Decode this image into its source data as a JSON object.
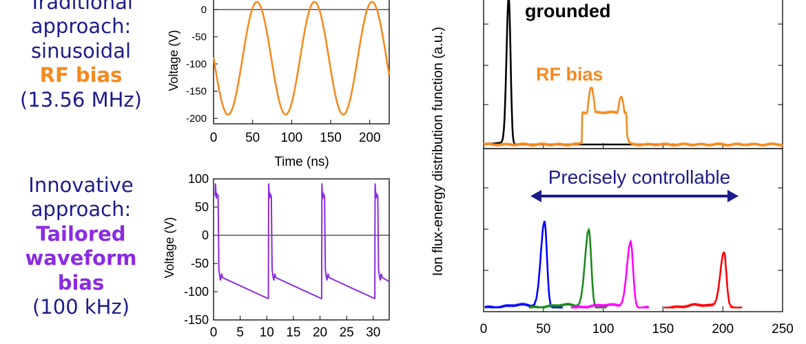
{
  "left_text": {
    "traditional": [
      "Traditional",
      "approach:",
      "sinusoidal"
    ],
    "rf_bias": "RF bias",
    "rf_freq": "(13.56 MHz)",
    "innovative": [
      "Innovative",
      "approach:"
    ],
    "tailored": [
      "Tailored",
      "waveform",
      "bias"
    ],
    "tw_freq": "(100 kHz)"
  },
  "colors": {
    "rf": "#f58a1f",
    "tailored": "#8a2be2",
    "navy": "#1c1c8c",
    "grounded": "#000000",
    "blue": "#0000ff",
    "green": "#1a8a1a",
    "magenta": "#ff00ff",
    "red": "#ff0000"
  },
  "chart_data": [
    {
      "type": "line",
      "ylabel": "Voltage (V)",
      "xlabel": "Time (ns)",
      "xlim": [
        0,
        225
      ],
      "ylim": [
        -210,
        20
      ],
      "xticks": [
        "0",
        "50",
        "100",
        "150",
        "200"
      ],
      "yticks": [
        "0",
        "-50",
        "-100",
        "-150",
        "-200"
      ],
      "series": [
        {
          "period_ns": 73.75,
          "max_V": 14,
          "min_V": -193,
          "x": [
            0,
            18.6,
            55.5,
            92.4,
            129.3,
            166.1,
            203,
            225
          ],
          "y": [
            -80,
            -193,
            14,
            -193,
            14,
            -193,
            14,
            -100
          ]
        }
      ]
    },
    {
      "type": "line",
      "ylabel": "Voltage (V)",
      "xlim": [
        0,
        33
      ],
      "ylim": [
        -150,
        100
      ],
      "xticks": [
        "0",
        "5",
        "10",
        "15",
        "20",
        "25",
        "30"
      ],
      "yticks": [
        "100",
        "50",
        "0",
        "-50",
        "-100",
        "-150"
      ],
      "series": [
        {
          "period_us": 10,
          "peak_V": 92,
          "plateau_V": 70,
          "after_pulse_V": -72,
          "min_V": -112,
          "end_V": -82
        }
      ]
    },
    {
      "type": "line",
      "ylabel": "Ion flux-energy distribution function (a.u.)",
      "xlim": [
        0,
        250
      ],
      "xticks": [
        "0",
        "50",
        "100",
        "150",
        "200",
        "250"
      ],
      "annotations": [
        "grounded",
        "RF bias",
        "Precisely controllable"
      ],
      "top_series": [
        {
          "name": "grounded",
          "peak_x": 21,
          "peak_height": 1.0
        },
        {
          "name": "RF bias",
          "peaks_x": [
            90,
            115
          ],
          "peaks_height": [
            0.39,
            0.33
          ]
        }
      ],
      "bottom_series": [
        {
          "peak_x": 51,
          "peak_height": 0.62
        },
        {
          "peak_x": 88,
          "peak_height": 0.56
        },
        {
          "peak_x": 123,
          "peak_height": 0.47
        },
        {
          "peak_x": 201,
          "peak_height": 0.4
        }
      ]
    }
  ]
}
